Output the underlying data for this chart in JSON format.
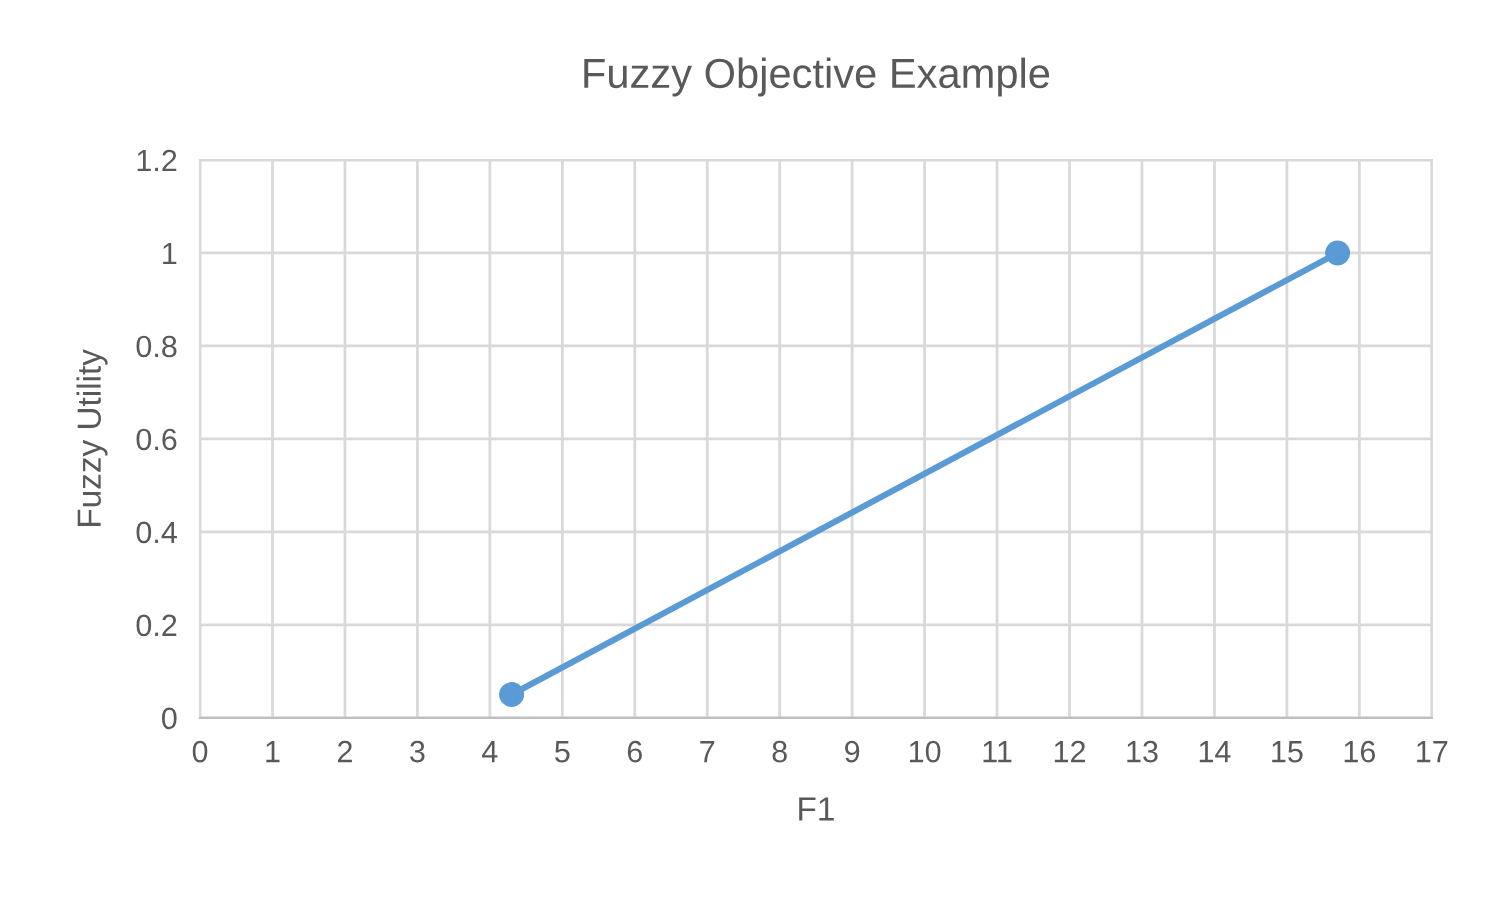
{
  "chart_data": {
    "type": "line",
    "title": "Fuzzy Objective Example",
    "xlabel": "F1",
    "ylabel": "Fuzzy Utility",
    "x": [
      4.3,
      15.7
    ],
    "series": [
      {
        "color": "#5b9bd5",
        "values": [
          0.05,
          1.0
        ]
      }
    ],
    "xlim": [
      0,
      17
    ],
    "xticks": [
      0,
      1,
      2,
      3,
      4,
      5,
      6,
      7,
      8,
      9,
      10,
      11,
      12,
      13,
      14,
      15,
      16,
      17
    ],
    "ylim": [
      0,
      1.2
    ],
    "yticks": [
      0,
      0.2,
      0.4,
      0.6,
      0.8,
      1,
      1.2
    ],
    "grid": true,
    "marker": "circle",
    "line_style": "solid",
    "legend": false
  }
}
